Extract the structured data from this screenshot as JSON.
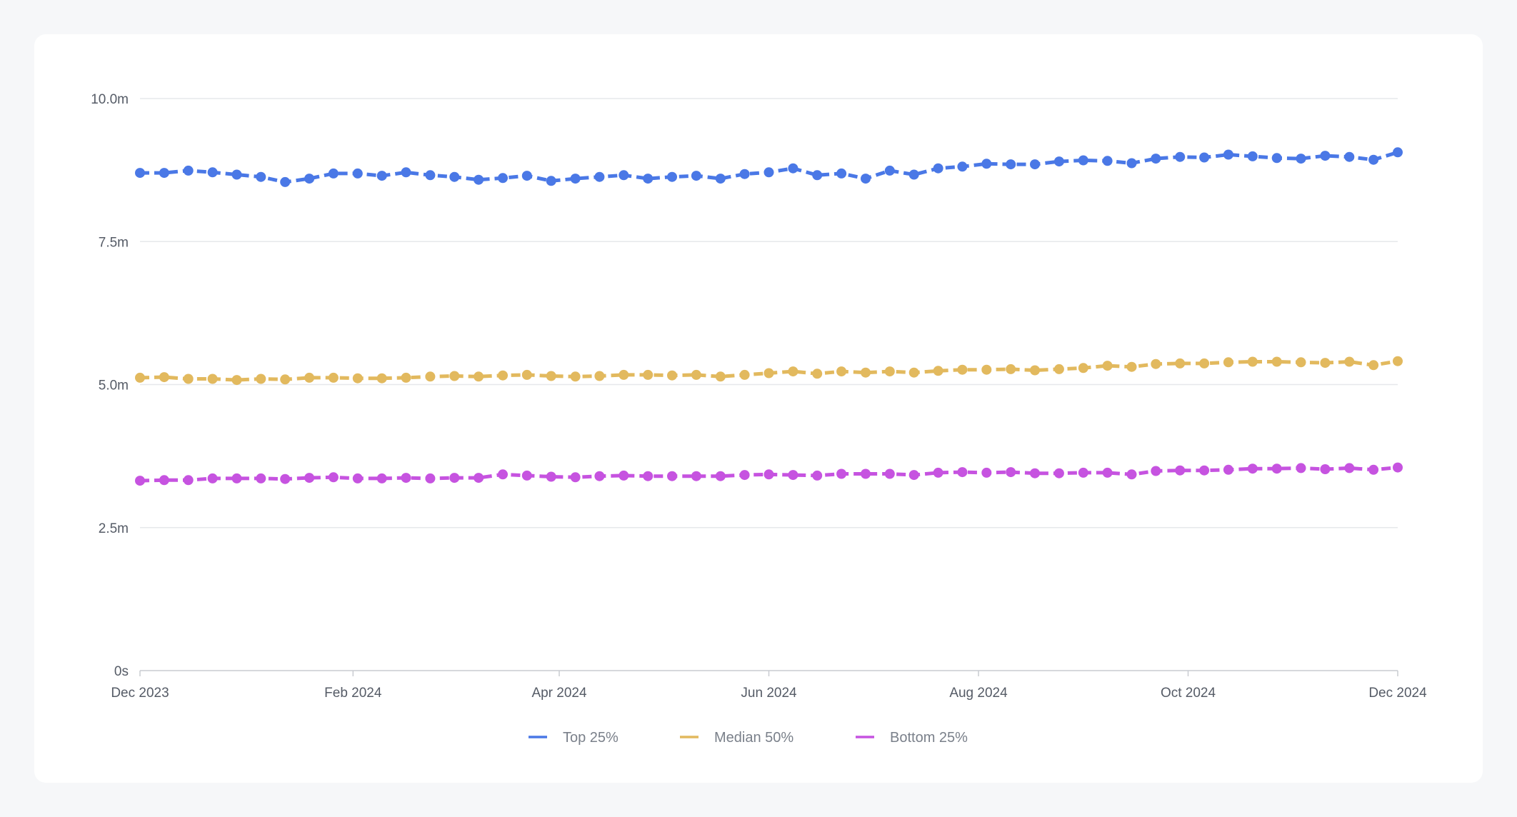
{
  "chart_data": {
    "type": "line",
    "title": "",
    "xlabel": "",
    "ylabel": "",
    "ylim": [
      0,
      10.0
    ],
    "y_unit": "m",
    "y_ticks": [
      {
        "value": 0,
        "label": "0s"
      },
      {
        "value": 2.5,
        "label": "2.5m"
      },
      {
        "value": 5.0,
        "label": "5.0m"
      },
      {
        "value": 7.5,
        "label": "7.5m"
      },
      {
        "value": 10.0,
        "label": "10.0m"
      }
    ],
    "x_range": [
      "2023-12-01",
      "2024-12-01"
    ],
    "x_ticks": [
      {
        "date": "2023-12-01",
        "label": "Dec 2023"
      },
      {
        "date": "2024-02-01",
        "label": "Feb 2024"
      },
      {
        "date": "2024-04-01",
        "label": "Apr 2024"
      },
      {
        "date": "2024-06-01",
        "label": "Jun 2024"
      },
      {
        "date": "2024-08-01",
        "label": "Aug 2024"
      },
      {
        "date": "2024-10-01",
        "label": "Oct 2024"
      },
      {
        "date": "2024-12-01",
        "label": "Dec 2024"
      }
    ],
    "grid": "horizontal",
    "legend_position": "bottom-center",
    "line_style": "dashed-with-markers",
    "series": [
      {
        "name": "Top 25%",
        "color": "#4a78e6",
        "values": [
          8.7,
          8.7,
          8.74,
          8.71,
          8.67,
          8.63,
          8.54,
          8.6,
          8.69,
          8.69,
          8.65,
          8.71,
          8.66,
          8.63,
          8.58,
          8.61,
          8.65,
          8.56,
          8.6,
          8.63,
          8.66,
          8.6,
          8.63,
          8.65,
          8.6,
          8.68,
          8.71,
          8.78,
          8.66,
          8.69,
          8.6,
          8.74,
          8.67,
          8.78,
          8.81,
          8.86,
          8.85,
          8.85,
          8.9,
          8.92,
          8.91,
          8.87,
          8.95,
          8.98,
          8.97,
          9.02,
          8.99,
          8.96,
          8.95,
          9.0,
          8.98,
          8.93,
          9.06
        ]
      },
      {
        "name": "Median 50%",
        "color": "#e2b95e",
        "values": [
          5.12,
          5.13,
          5.1,
          5.1,
          5.08,
          5.1,
          5.09,
          5.12,
          5.12,
          5.11,
          5.11,
          5.12,
          5.14,
          5.15,
          5.14,
          5.16,
          5.17,
          5.15,
          5.14,
          5.15,
          5.17,
          5.17,
          5.16,
          5.17,
          5.14,
          5.17,
          5.2,
          5.23,
          5.19,
          5.23,
          5.21,
          5.23,
          5.21,
          5.24,
          5.26,
          5.26,
          5.27,
          5.25,
          5.27,
          5.29,
          5.33,
          5.31,
          5.36,
          5.37,
          5.37,
          5.39,
          5.4,
          5.4,
          5.39,
          5.38,
          5.4,
          5.34,
          5.41
        ]
      },
      {
        "name": "Bottom 25%",
        "color": "#c653e0",
        "values": [
          3.32,
          3.33,
          3.33,
          3.36,
          3.36,
          3.36,
          3.35,
          3.37,
          3.38,
          3.36,
          3.36,
          3.37,
          3.36,
          3.37,
          3.37,
          3.43,
          3.41,
          3.39,
          3.38,
          3.4,
          3.41,
          3.4,
          3.4,
          3.4,
          3.4,
          3.42,
          3.43,
          3.42,
          3.41,
          3.44,
          3.44,
          3.44,
          3.42,
          3.46,
          3.47,
          3.46,
          3.47,
          3.45,
          3.45,
          3.46,
          3.46,
          3.43,
          3.49,
          3.5,
          3.5,
          3.51,
          3.53,
          3.53,
          3.54,
          3.52,
          3.54,
          3.51,
          3.55
        ]
      }
    ]
  }
}
